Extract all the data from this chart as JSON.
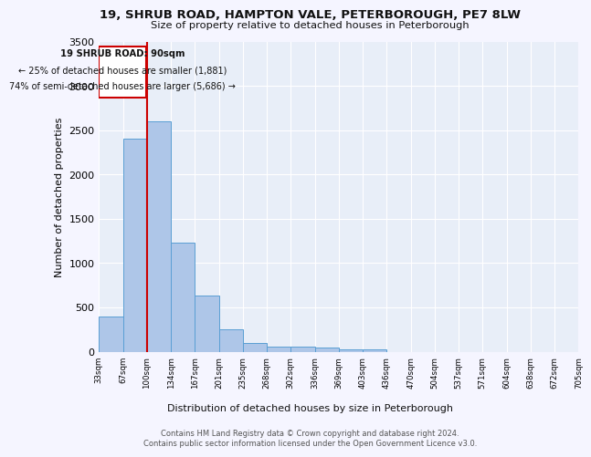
{
  "title1": "19, SHRUB ROAD, HAMPTON VALE, PETERBOROUGH, PE7 8LW",
  "title2": "Size of property relative to detached houses in Peterborough",
  "xlabel": "Distribution of detached houses by size in Peterborough",
  "ylabel": "Number of detached properties",
  "bar_values": [
    400,
    2400,
    2600,
    1230,
    630,
    250,
    100,
    60,
    55,
    50,
    30,
    30,
    0,
    0,
    0,
    0,
    0,
    0,
    0,
    0
  ],
  "categories": [
    "33sqm",
    "67sqm",
    "100sqm",
    "134sqm",
    "167sqm",
    "201sqm",
    "235sqm",
    "268sqm",
    "302sqm",
    "336sqm",
    "369sqm",
    "403sqm",
    "436sqm",
    "470sqm",
    "504sqm",
    "537sqm",
    "571sqm",
    "604sqm",
    "638sqm",
    "672sqm",
    "705sqm"
  ],
  "bar_color": "#aec6e8",
  "bar_edge_color": "#5a9fd4",
  "annotation_box_color": "#ffffff",
  "annotation_border_color": "#cc0000",
  "vline_color": "#cc0000",
  "annotation_text1": "19 SHRUB ROAD: 90sqm",
  "annotation_text2": "← 25% of detached houses are smaller (1,881)",
  "annotation_text3": "74% of semi-detached houses are larger (5,686) →",
  "footer1": "Contains HM Land Registry data © Crown copyright and database right 2024.",
  "footer2": "Contains public sector information licensed under the Open Government Licence v3.0.",
  "bg_color": "#e8eef8",
  "grid_color": "#ffffff",
  "ylim": [
    0,
    3500
  ],
  "fig_bg": "#f5f5ff"
}
